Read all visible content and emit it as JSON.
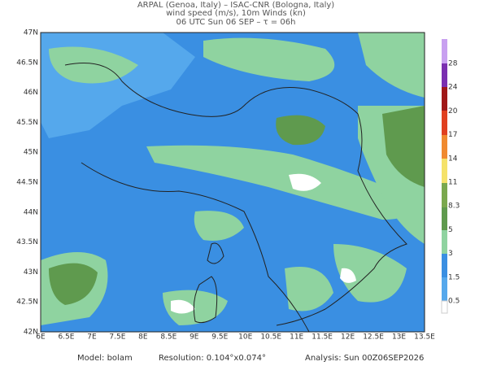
{
  "header": {
    "line1": "ARPAL (Genoa, Italy)  –  ISAC-CNR (Bologna, Italy)",
    "line2": "wind speed (m/s), 10m Winds (kn)",
    "line3": "06 UTC Sun 06 SEP  –  τ = 06h"
  },
  "axes": {
    "lat_labels": [
      "47N",
      "46.5N",
      "46N",
      "45.5N",
      "45N",
      "44.5N",
      "44N",
      "43.5N",
      "43N",
      "42.5N",
      "42N"
    ],
    "lon_labels": [
      "6E",
      "6.5E",
      "7E",
      "7.5E",
      "8E",
      "8.5E",
      "9E",
      "9.5E",
      "10E",
      "10.5E",
      "11E",
      "11.5E",
      "12E",
      "12.5E",
      "13E",
      "13.5E"
    ]
  },
  "colorbar": {
    "labels": [
      "28",
      "24",
      "20",
      "17",
      "14",
      "11",
      "8.3",
      "5",
      "3",
      "1.5",
      "0.5"
    ]
  },
  "footer": {
    "model": "Model: bolam",
    "resolution": "Resolution: 0.104°x0.074°",
    "analysis": "Analysis: Sun 00Z06SEP2026"
  }
}
